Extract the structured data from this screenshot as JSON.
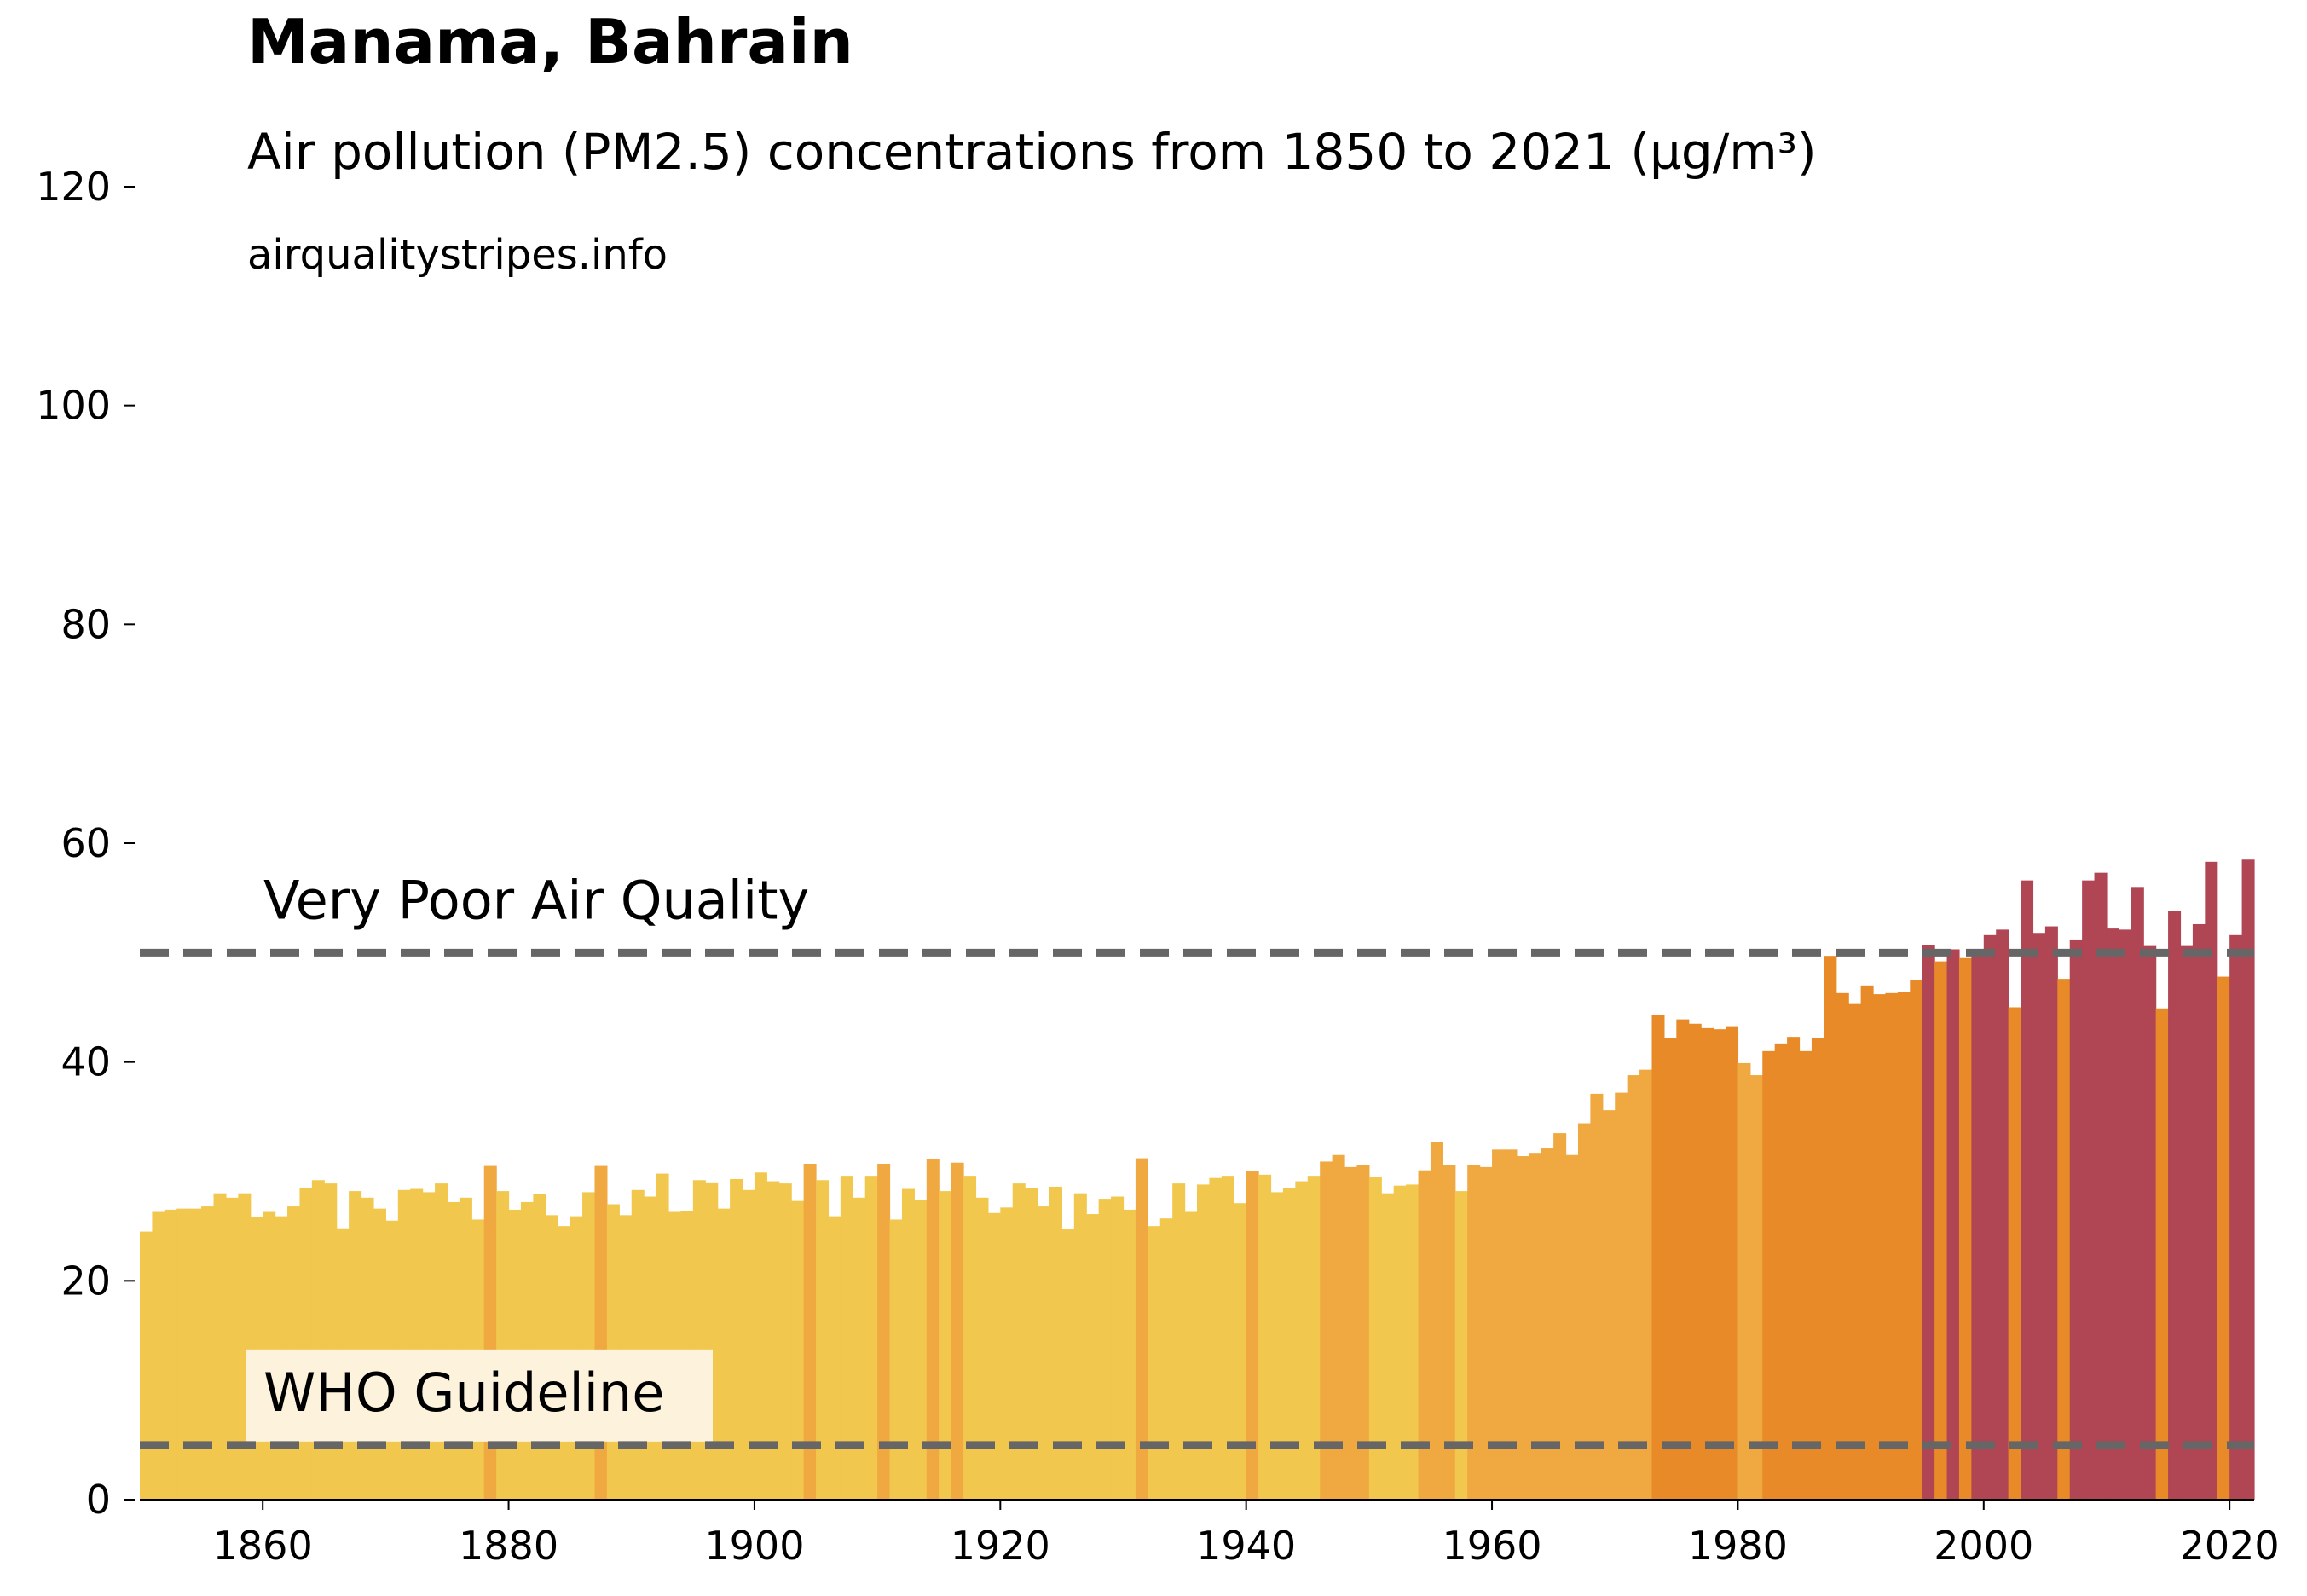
{
  "chart_data": {
    "type": "bar",
    "title": "Manama, Bahrain",
    "subtitle": "Air pollution (PM2.5) concentrations from 1850 to 2021 (µg/m³)",
    "source": "airqualitystripes.info",
    "x": [
      1850,
      1851,
      1852,
      1853,
      1854,
      1855,
      1856,
      1857,
      1858,
      1859,
      1860,
      1861,
      1862,
      1863,
      1864,
      1865,
      1866,
      1867,
      1868,
      1869,
      1870,
      1871,
      1872,
      1873,
      1874,
      1875,
      1876,
      1877,
      1878,
      1879,
      1880,
      1881,
      1882,
      1883,
      1884,
      1885,
      1886,
      1887,
      1888,
      1889,
      1890,
      1891,
      1892,
      1893,
      1894,
      1895,
      1896,
      1897,
      1898,
      1899,
      1900,
      1901,
      1902,
      1903,
      1904,
      1905,
      1906,
      1907,
      1908,
      1909,
      1910,
      1911,
      1912,
      1913,
      1914,
      1915,
      1916,
      1917,
      1918,
      1919,
      1920,
      1921,
      1922,
      1923,
      1924,
      1925,
      1926,
      1927,
      1928,
      1929,
      1930,
      1931,
      1932,
      1933,
      1934,
      1935,
      1936,
      1937,
      1938,
      1939,
      1940,
      1941,
      1942,
      1943,
      1944,
      1945,
      1946,
      1947,
      1948,
      1949,
      1950,
      1951,
      1952,
      1953,
      1954,
      1955,
      1956,
      1957,
      1958,
      1959,
      1960,
      1961,
      1962,
      1963,
      1964,
      1965,
      1966,
      1967,
      1968,
      1969,
      1970,
      1971,
      1972,
      1973,
      1974,
      1975,
      1976,
      1977,
      1978,
      1979,
      1980,
      1981,
      1982,
      1983,
      1984,
      1985,
      1986,
      1987,
      1988,
      1989,
      1990,
      1991,
      1992,
      1993,
      1994,
      1995,
      1996,
      1997,
      1998,
      1999,
      2000,
      2001,
      2002,
      2003,
      2004,
      2005,
      2006,
      2007,
      2008,
      2009,
      2010,
      2011,
      2012,
      2013,
      2014,
      2015,
      2016,
      2017,
      2018,
      2019,
      2020,
      2021
    ],
    "values": [
      24.5,
      26.3,
      26.5,
      26.6,
      26.6,
      26.8,
      28.0,
      27.6,
      28.0,
      25.8,
      26.3,
      25.9,
      26.8,
      28.5,
      29.2,
      28.9,
      24.8,
      28.2,
      27.6,
      26.6,
      25.5,
      28.3,
      28.4,
      28.1,
      28.9,
      27.2,
      27.6,
      25.6,
      30.5,
      28.2,
      26.5,
      27.2,
      27.9,
      26.0,
      25.0,
      25.9,
      28.1,
      30.5,
      27.0,
      26.0,
      28.3,
      27.7,
      29.8,
      26.3,
      26.4,
      29.2,
      29.0,
      26.6,
      29.3,
      28.3,
      29.9,
      29.1,
      28.9,
      27.3,
      30.7,
      29.2,
      25.9,
      29.6,
      27.6,
      29.6,
      30.7,
      25.6,
      28.4,
      27.4,
      31.1,
      28.2,
      30.8,
      29.6,
      27.6,
      26.2,
      26.7,
      28.9,
      28.5,
      26.8,
      28.6,
      24.7,
      28.0,
      26.1,
      27.5,
      27.7,
      26.5,
      31.2,
      25.0,
      25.7,
      28.9,
      26.3,
      28.8,
      29.4,
      29.6,
      27.1,
      30.0,
      29.7,
      28.1,
      28.5,
      29.1,
      29.6,
      30.9,
      31.5,
      30.4,
      30.6,
      29.5,
      28.0,
      28.7,
      28.8,
      30.1,
      32.7,
      30.6,
      28.2,
      30.6,
      30.4,
      32.0,
      32.0,
      31.4,
      31.7,
      32.1,
      33.5,
      31.5,
      34.4,
      37.1,
      35.6,
      37.2,
      38.8,
      39.3,
      44.3,
      42.2,
      43.9,
      43.5,
      43.1,
      43.0,
      43.2,
      39.9,
      38.8,
      41.0,
      41.7,
      42.3,
      41.0,
      42.2,
      49.7,
      46.3,
      45.3,
      47.0,
      46.2,
      46.3,
      46.4,
      47.5,
      50.7,
      49.2,
      50.3,
      49.5,
      50.3,
      51.6,
      52.1,
      45.0,
      56.6,
      51.8,
      52.4,
      47.6,
      51.2,
      56.6,
      57.3,
      52.2,
      52.1,
      56.0,
      50.6,
      44.9,
      53.8,
      50.6,
      52.6,
      58.3,
      47.8,
      51.6,
      58.5
    ],
    "colors": [
      "#f2c74e",
      "#f2c74e",
      "#f2c74e",
      "#f2c74e",
      "#f2c74e",
      "#f2c74e",
      "#f2c74e",
      "#f2c74e",
      "#f2c74e",
      "#f2c74e",
      "#f2c74e",
      "#f2c74e",
      "#f2c74e",
      "#f2c74e",
      "#f2c74e",
      "#f2c74e",
      "#f2c74e",
      "#f2c74e",
      "#f2c74e",
      "#f2c74e",
      "#f2c74e",
      "#f2c74e",
      "#f2c74e",
      "#f2c74e",
      "#f2c74e",
      "#f2c74e",
      "#f2c74e",
      "#f2c74e",
      "#f0a841",
      "#f2c74e",
      "#f2c74e",
      "#f2c74e",
      "#f2c74e",
      "#f2c74e",
      "#f2c74e",
      "#f2c74e",
      "#f2c74e",
      "#f0a841",
      "#f2c74e",
      "#f2c74e",
      "#f2c74e",
      "#f2c74e",
      "#f2c74e",
      "#f2c74e",
      "#f2c74e",
      "#f2c74e",
      "#f2c74e",
      "#f2c74e",
      "#f2c74e",
      "#f2c74e",
      "#f2c74e",
      "#f2c74e",
      "#f2c74e",
      "#f2c74e",
      "#f0a841",
      "#f2c74e",
      "#f2c74e",
      "#f2c74e",
      "#f2c74e",
      "#f2c74e",
      "#f0a841",
      "#f2c74e",
      "#f2c74e",
      "#f2c74e",
      "#f0a841",
      "#f2c74e",
      "#f0a841",
      "#f2c74e",
      "#f2c74e",
      "#f2c74e",
      "#f2c74e",
      "#f2c74e",
      "#f2c74e",
      "#f2c74e",
      "#f2c74e",
      "#f2c74e",
      "#f2c74e",
      "#f2c74e",
      "#f2c74e",
      "#f2c74e",
      "#f2c74e",
      "#f0a841",
      "#f2c74e",
      "#f2c74e",
      "#f2c74e",
      "#f2c74e",
      "#f2c74e",
      "#f2c74e",
      "#f2c74e",
      "#f2c74e",
      "#f0a841",
      "#f2c74e",
      "#f2c74e",
      "#f2c74e",
      "#f2c74e",
      "#f2c74e",
      "#f0a841",
      "#f0a841",
      "#f0a841",
      "#f0a841",
      "#f2c74e",
      "#f2c74e",
      "#f2c74e",
      "#f2c74e",
      "#f0a841",
      "#f0a841",
      "#f0a841",
      "#f2c74e",
      "#f0a841",
      "#f0a841",
      "#f0a841",
      "#f0a841",
      "#f0a841",
      "#f0a841",
      "#f0a841",
      "#f0a841",
      "#f0a841",
      "#f0a841",
      "#f0a841",
      "#f0a841",
      "#f0a841",
      "#f0a841",
      "#f0a841",
      "#e88a27",
      "#e88a27",
      "#e88a27",
      "#e88a27",
      "#e88a27",
      "#e88a27",
      "#e88a27",
      "#f0a841",
      "#f0a841",
      "#e88a27",
      "#e88a27",
      "#e88a27",
      "#e88a27",
      "#e88a27",
      "#e88a27",
      "#e88a27",
      "#e88a27",
      "#e88a27",
      "#e88a27",
      "#e88a27",
      "#e88a27",
      "#e88a27",
      "#b04554",
      "#e88a27",
      "#b04554",
      "#e88a27",
      "#b04554",
      "#b04554",
      "#b04554",
      "#e88a27",
      "#b04554",
      "#b04554",
      "#b04554",
      "#e88a27",
      "#b04554",
      "#b04554",
      "#b04554",
      "#b04554",
      "#b04554",
      "#b04554",
      "#b04554",
      "#e88a27",
      "#b04554",
      "#b04554",
      "#b04554",
      "#b04554",
      "#e88a27",
      "#b04554",
      "#b04554"
    ],
    "xlim": [
      1850,
      2022
    ],
    "xticks": [
      1860,
      1880,
      1900,
      1920,
      1940,
      1960,
      1980,
      2000,
      2020
    ],
    "ylim": [
      0,
      120
    ],
    "yticks": [
      0,
      20,
      40,
      60,
      80,
      100,
      120
    ],
    "reference_lines": [
      {
        "label": "Very Poor Air Quality",
        "value": 50,
        "color": "#666666"
      },
      {
        "label": "WHO Guideline",
        "value": 5,
        "color": "#666666"
      }
    ]
  }
}
